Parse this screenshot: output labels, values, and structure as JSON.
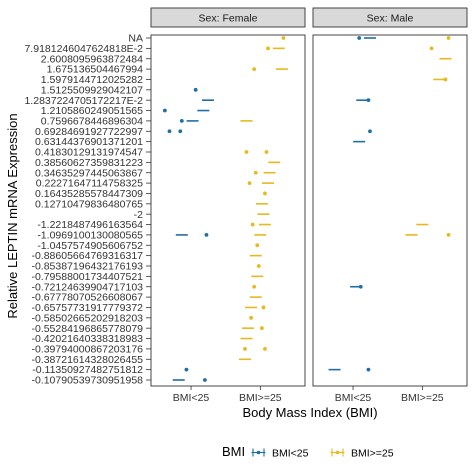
{
  "chart_data": {
    "type": "scatter",
    "ylabel": "Relative LEPTIN mRNA Expression",
    "xlabel": "Body Mass Index (BMI)",
    "x_categories": [
      "BMI<25",
      "BMI>=25"
    ],
    "facet_strip_prefix": "Sex: ",
    "panels": [
      {
        "label": "Sex: Female",
        "sex": "Female"
      },
      {
        "label": "Sex: Male",
        "sex": "Male"
      }
    ],
    "y_tick_labels": [
      "NA",
      "7.9181246047624818E-2",
      "2.6008095963872484",
      "1.675136504467994",
      "1.5979144712025282",
      "1.5125509929042107",
      "1.2837224705172217E-2",
      "1.2105860249051565",
      "0.7596678446896304",
      "0.69284691927722997",
      "0.63144376901371201",
      "0.41830129131974547",
      "0.38560627359831223",
      "0.34635297445063867",
      "0.22271647114758325",
      "0.16435285578447309",
      "0.12710479836480765",
      "-2",
      "-1.2218487496163564",
      "-1.0969100130080565",
      "-1.0457574905606752",
      "-0.88605664769316317",
      "-0.85387196432176193",
      "-0.79588001734407521",
      "-0.72124639904717103",
      "-0.67778070526608067",
      "-0.65757731917779372",
      "-0.58502665202918203",
      "-0.55284196865778079",
      "-0.42021640338318983",
      "-0.39794000867203176",
      "-0.38721614328026455",
      "-0.11350927482751812",
      "-0.10790539730951958"
    ],
    "legend": {
      "title": "BMI",
      "position": "bottom",
      "entries": [
        {
          "name": "BMI<25",
          "color": "#1f6ea6"
        },
        {
          "name": "BMI>=25",
          "color": "#e6b91e"
        }
      ]
    },
    "series": [
      {
        "name": "BMI<25",
        "color": "#1f6ea6",
        "points": [
          {
            "panel": "Female",
            "y": "1.2837224705172217E-2",
            "pos": 0.55,
            "shape": "dash"
          },
          {
            "panel": "Female",
            "y": "1.5125509929042107",
            "pos": 0.15,
            "shape": "dot"
          },
          {
            "panel": "Female",
            "y": "1.2105860249051565",
            "pos": -0.85,
            "shape": "dot"
          },
          {
            "panel": "Female",
            "y": "1.2105860249051565",
            "pos": 0.4,
            "shape": "dash"
          },
          {
            "panel": "Female",
            "y": "0.7596678446896304",
            "pos": -0.3,
            "shape": "dot"
          },
          {
            "panel": "Female",
            "y": "0.7596678446896304",
            "pos": 0.05,
            "shape": "dash"
          },
          {
            "panel": "Female",
            "y": "0.69284691927722997",
            "pos": -0.7,
            "shape": "dot"
          },
          {
            "panel": "Female",
            "y": "0.69284691927722997",
            "pos": -0.35,
            "shape": "dot"
          },
          {
            "panel": "Female",
            "y": "-1.0969100130080565",
            "pos": -0.3,
            "shape": "dash"
          },
          {
            "panel": "Female",
            "y": "-1.0969100130080565",
            "pos": 0.5,
            "shape": "dot"
          },
          {
            "panel": "Female",
            "y": "-0.11350927482751812",
            "pos": -0.15,
            "shape": "dot"
          },
          {
            "panel": "Female",
            "y": "-0.10790539730951958",
            "pos": -0.4,
            "shape": "dash"
          },
          {
            "panel": "Female",
            "y": "-0.10790539730951958",
            "pos": 0.45,
            "shape": "dot"
          },
          {
            "panel": "Male",
            "y": "NA",
            "pos": 0.2,
            "shape": "dot"
          },
          {
            "panel": "Male",
            "y": "NA",
            "pos": 0.55,
            "shape": "dash"
          },
          {
            "panel": "Male",
            "y": "1.2837224705172217E-2",
            "pos": 0.3,
            "shape": "dash"
          },
          {
            "panel": "Male",
            "y": "1.2837224705172217E-2",
            "pos": 0.5,
            "shape": "dot"
          },
          {
            "panel": "Male",
            "y": "0.69284691927722997",
            "pos": 0.55,
            "shape": "dot"
          },
          {
            "panel": "Male",
            "y": "0.63144376901371201",
            "pos": 0.2,
            "shape": "dash"
          },
          {
            "panel": "Male",
            "y": "-0.72124639904717103",
            "pos": 0.1,
            "shape": "dash"
          },
          {
            "panel": "Male",
            "y": "-0.72124639904717103",
            "pos": 0.25,
            "shape": "dot"
          },
          {
            "panel": "Male",
            "y": "-0.11350927482751812",
            "pos": -0.6,
            "shape": "dash"
          },
          {
            "panel": "Male",
            "y": "-0.11350927482751812",
            "pos": 0.5,
            "shape": "dot"
          }
        ]
      },
      {
        "name": "BMI>=25",
        "color": "#e6b91e",
        "points": [
          {
            "panel": "Female",
            "y": "NA",
            "pos": 0.75,
            "shape": "dot"
          },
          {
            "panel": "Female",
            "y": "7.9181246047624818E-2",
            "pos": 0.25,
            "shape": "dot"
          },
          {
            "panel": "Female",
            "y": "7.9181246047624818E-2",
            "pos": 0.6,
            "shape": "dash"
          },
          {
            "panel": "Female",
            "y": "1.675136504467994",
            "pos": -0.2,
            "shape": "dot"
          },
          {
            "panel": "Female",
            "y": "1.675136504467994",
            "pos": 0.7,
            "shape": "dash"
          },
          {
            "panel": "Female",
            "y": "0.7596678446896304",
            "pos": -0.45,
            "shape": "dash"
          },
          {
            "panel": "Female",
            "y": "0.41830129131974547",
            "pos": -0.45,
            "shape": "dot"
          },
          {
            "panel": "Female",
            "y": "0.41830129131974547",
            "pos": 0.2,
            "shape": "dot"
          },
          {
            "panel": "Female",
            "y": "0.38560627359831223",
            "pos": 0.45,
            "shape": "dash"
          },
          {
            "panel": "Female",
            "y": "0.34635297445063867",
            "pos": -0.15,
            "shape": "dot"
          },
          {
            "panel": "Female",
            "y": "0.34635297445063867",
            "pos": 0.3,
            "shape": "dash"
          },
          {
            "panel": "Female",
            "y": "0.22271647114758325",
            "pos": -0.35,
            "shape": "dot"
          },
          {
            "panel": "Female",
            "y": "0.22271647114758325",
            "pos": 0.25,
            "shape": "dash"
          },
          {
            "panel": "Female",
            "y": "0.16435285578447309",
            "pos": 0.15,
            "shape": "dot"
          },
          {
            "panel": "Female",
            "y": "0.12710479836480765",
            "pos": 0.05,
            "shape": "dash"
          },
          {
            "panel": "Female",
            "y": "-2",
            "pos": 0.1,
            "shape": "dash"
          },
          {
            "panel": "Female",
            "y": "-1.2218487496163564",
            "pos": -0.25,
            "shape": "dot"
          },
          {
            "panel": "Female",
            "y": "-1.2218487496163564",
            "pos": 0.15,
            "shape": "dash"
          },
          {
            "panel": "Female",
            "y": "-1.0969100130080565",
            "pos": 0.0,
            "shape": "dash"
          },
          {
            "panel": "Female",
            "y": "-1.0457574905606752",
            "pos": -0.1,
            "shape": "dot"
          },
          {
            "panel": "Female",
            "y": "-0.88605664769316317",
            "pos": -0.15,
            "shape": "dash"
          },
          {
            "panel": "Female",
            "y": "-0.85387196432176193",
            "pos": -0.05,
            "shape": "dot"
          },
          {
            "panel": "Female",
            "y": "-0.79588001734407521",
            "pos": -0.1,
            "shape": "dash"
          },
          {
            "panel": "Female",
            "y": "-0.72124639904717103",
            "pos": -0.2,
            "shape": "dot"
          },
          {
            "panel": "Female",
            "y": "-0.67778070526608067",
            "pos": -0.15,
            "shape": "dash"
          },
          {
            "panel": "Female",
            "y": "-0.65757731917779372",
            "pos": -0.3,
            "shape": "dash"
          },
          {
            "panel": "Female",
            "y": "-0.65757731917779372",
            "pos": 0.1,
            "shape": "dot"
          },
          {
            "panel": "Female",
            "y": "-0.58502665202918203",
            "pos": -0.3,
            "shape": "dot"
          },
          {
            "panel": "Female",
            "y": "-0.55284196865778079",
            "pos": -0.4,
            "shape": "dash"
          },
          {
            "panel": "Female",
            "y": "-0.55284196865778079",
            "pos": 0.05,
            "shape": "dot"
          },
          {
            "panel": "Female",
            "y": "-0.42021640338318983",
            "pos": -0.45,
            "shape": "dash"
          },
          {
            "panel": "Female",
            "y": "-0.39794000867203176",
            "pos": -0.5,
            "shape": "dot"
          },
          {
            "panel": "Female",
            "y": "-0.39794000867203176",
            "pos": 0.15,
            "shape": "dot"
          },
          {
            "panel": "Female",
            "y": "-0.38721614328026455",
            "pos": -0.5,
            "shape": "dash"
          },
          {
            "panel": "Male",
            "y": "NA",
            "pos": 0.85,
            "shape": "dot"
          },
          {
            "panel": "Male",
            "y": "7.9181246047624818E-2",
            "pos": 0.3,
            "shape": "dot"
          },
          {
            "panel": "Male",
            "y": "2.6008095963872484",
            "pos": 0.75,
            "shape": "dash"
          },
          {
            "panel": "Male",
            "y": "1.5979144712025282",
            "pos": 0.55,
            "shape": "dash"
          },
          {
            "panel": "Male",
            "y": "1.5979144712025282",
            "pos": 0.75,
            "shape": "dot"
          },
          {
            "panel": "Male",
            "y": "-1.2218487496163564",
            "pos": 0.0,
            "shape": "dash"
          },
          {
            "panel": "Male",
            "y": "-1.0969100130080565",
            "pos": -0.35,
            "shape": "dash"
          },
          {
            "panel": "Male",
            "y": "-1.0969100130080565",
            "pos": 0.85,
            "shape": "dot"
          }
        ]
      }
    ]
  }
}
